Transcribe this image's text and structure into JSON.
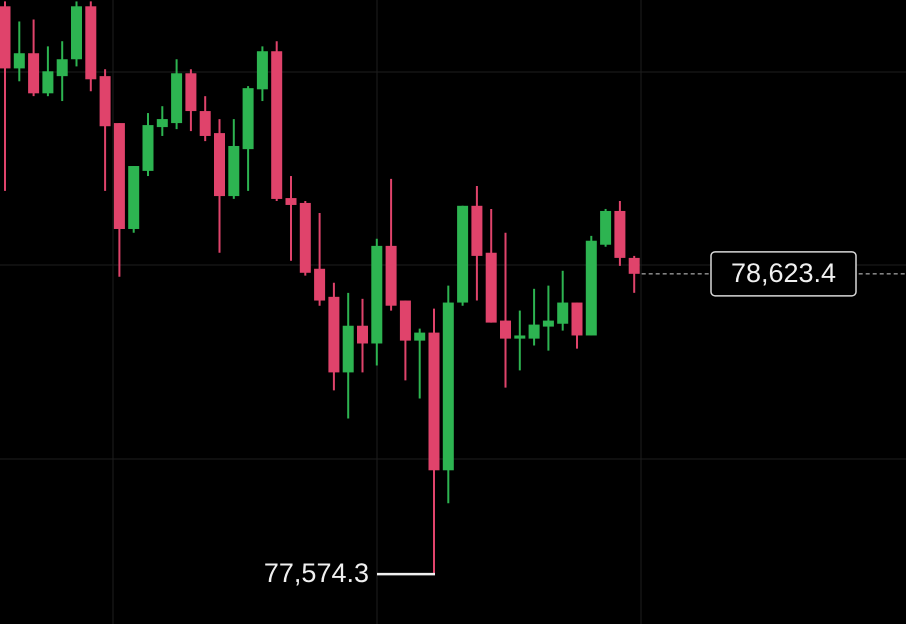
{
  "chart_data": {
    "type": "candlestick",
    "up_color": "#2db451",
    "down_color": "#e0436b",
    "ylim": [
      77400,
      79580
    ],
    "open": [
      79558,
      79341,
      79394,
      79254,
      79314,
      79373,
      79558,
      79314,
      79150,
      78780,
      78983,
      79136,
      79150,
      79324,
      79192,
      79115,
      78895,
      79059,
      79268,
      79401,
      78888,
      78871,
      78641,
      78543,
      78279,
      78442,
      78380,
      78721,
      78530,
      78390,
      78418,
      77937,
      78523,
      78861,
      78697,
      78460,
      78397,
      78397,
      78439,
      78449,
      78523,
      78408,
      78725,
      78843,
      78679
    ],
    "high": [
      79575,
      79505,
      79512,
      79418,
      79436,
      79575,
      79575,
      79338,
      79150,
      79000,
      79185,
      79209,
      79373,
      79338,
      79244,
      79164,
      79164,
      79279,
      79418,
      79436,
      78965,
      78878,
      78836,
      78592,
      78557,
      78536,
      78746,
      78955,
      78530,
      78432,
      78502,
      78582,
      78861,
      78930,
      78850,
      78767,
      78495,
      78571,
      78582,
      78634,
      78523,
      78756,
      78850,
      78878,
      78686
    ],
    "low": [
      78913,
      79296,
      79244,
      79244,
      79227,
      79348,
      79261,
      78913,
      78613,
      78767,
      78965,
      79105,
      79129,
      79122,
      79087,
      78697,
      78885,
      78913,
      79227,
      78878,
      78669,
      78617,
      78512,
      78216,
      78118,
      78279,
      78303,
      78495,
      78251,
      78188,
      77574.3,
      77822,
      78512,
      78530,
      78453,
      78226,
      78286,
      78373,
      78355,
      78425,
      78362,
      78408,
      78718,
      78651,
      78557
    ],
    "close": [
      79341,
      79394,
      79254,
      79331,
      79373,
      79558,
      79303,
      79139,
      78780,
      79000,
      79143,
      79164,
      79324,
      79192,
      79105,
      78895,
      79070,
      79272,
      79401,
      78885,
      78864,
      78627,
      78530,
      78279,
      78442,
      78380,
      78721,
      78512,
      78390,
      78418,
      77937,
      78523,
      78861,
      78686,
      78453,
      78397,
      78408,
      78446,
      78460,
      78523,
      78408,
      78739,
      78843,
      78679,
      78623.4
    ],
    "last_price": {
      "value": 78623.4,
      "label": "78,623.4"
    },
    "low_marker": {
      "value": 77574.3,
      "label": "77,574.3"
    }
  }
}
